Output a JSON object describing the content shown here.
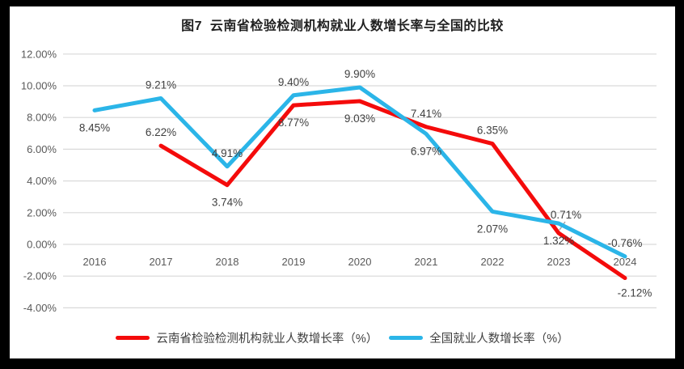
{
  "window": {
    "background": "#000000"
  },
  "chart_data": {
    "type": "line",
    "title": "图7  云南省检验检测机构就业人数增长率与全国的比较",
    "categories": [
      "2016",
      "2017",
      "2018",
      "2019",
      "2020",
      "2021",
      "2022",
      "2023",
      "2024"
    ],
    "series": [
      {
        "id": "yunnan",
        "name": "云南省检验检测机构就业人数增长率（%）",
        "color": "#f40b0b",
        "values": [
          null,
          6.22,
          3.74,
          8.77,
          9.03,
          7.41,
          6.35,
          0.71,
          -2.12
        ],
        "labels": [
          null,
          "6.22%",
          "3.74%",
          "8.77%",
          "9.03%",
          "7.41%",
          "6.35%",
          "0.71%",
          "-2.12%"
        ],
        "label_positions": [
          null,
          "above",
          "below",
          "below",
          "below",
          "above",
          "above",
          "above-leader",
          "below-right"
        ]
      },
      {
        "id": "national",
        "name": "全国就业人数增长率（%）",
        "color": "#2bb5e8",
        "values": [
          8.45,
          9.21,
          4.91,
          9.4,
          9.9,
          6.97,
          2.07,
          1.32,
          -0.76
        ],
        "labels": [
          "8.45%",
          "9.21%",
          "4.91%",
          "9.40%",
          "9.90%",
          "6.97%",
          "2.07%",
          "1.32%",
          "-0.76%"
        ],
        "label_positions": [
          "below",
          "above",
          "above",
          "above",
          "above",
          "below",
          "below",
          "below",
          "above"
        ]
      }
    ],
    "y_axis": {
      "ticks": [
        "12.00%",
        "10.00%",
        "8.00%",
        "6.00%",
        "4.00%",
        "2.00%",
        "0.00%",
        "-2.00%",
        "-4.00%"
      ],
      "min": -4,
      "max": 12,
      "step": 2
    },
    "grid": true,
    "grid_color": "#d9d9d9",
    "axis_text_color": "#595959",
    "data_label_color": "#3f3f3f",
    "leader_line_color": "#a6a6a6",
    "legend_position": "bottom"
  }
}
